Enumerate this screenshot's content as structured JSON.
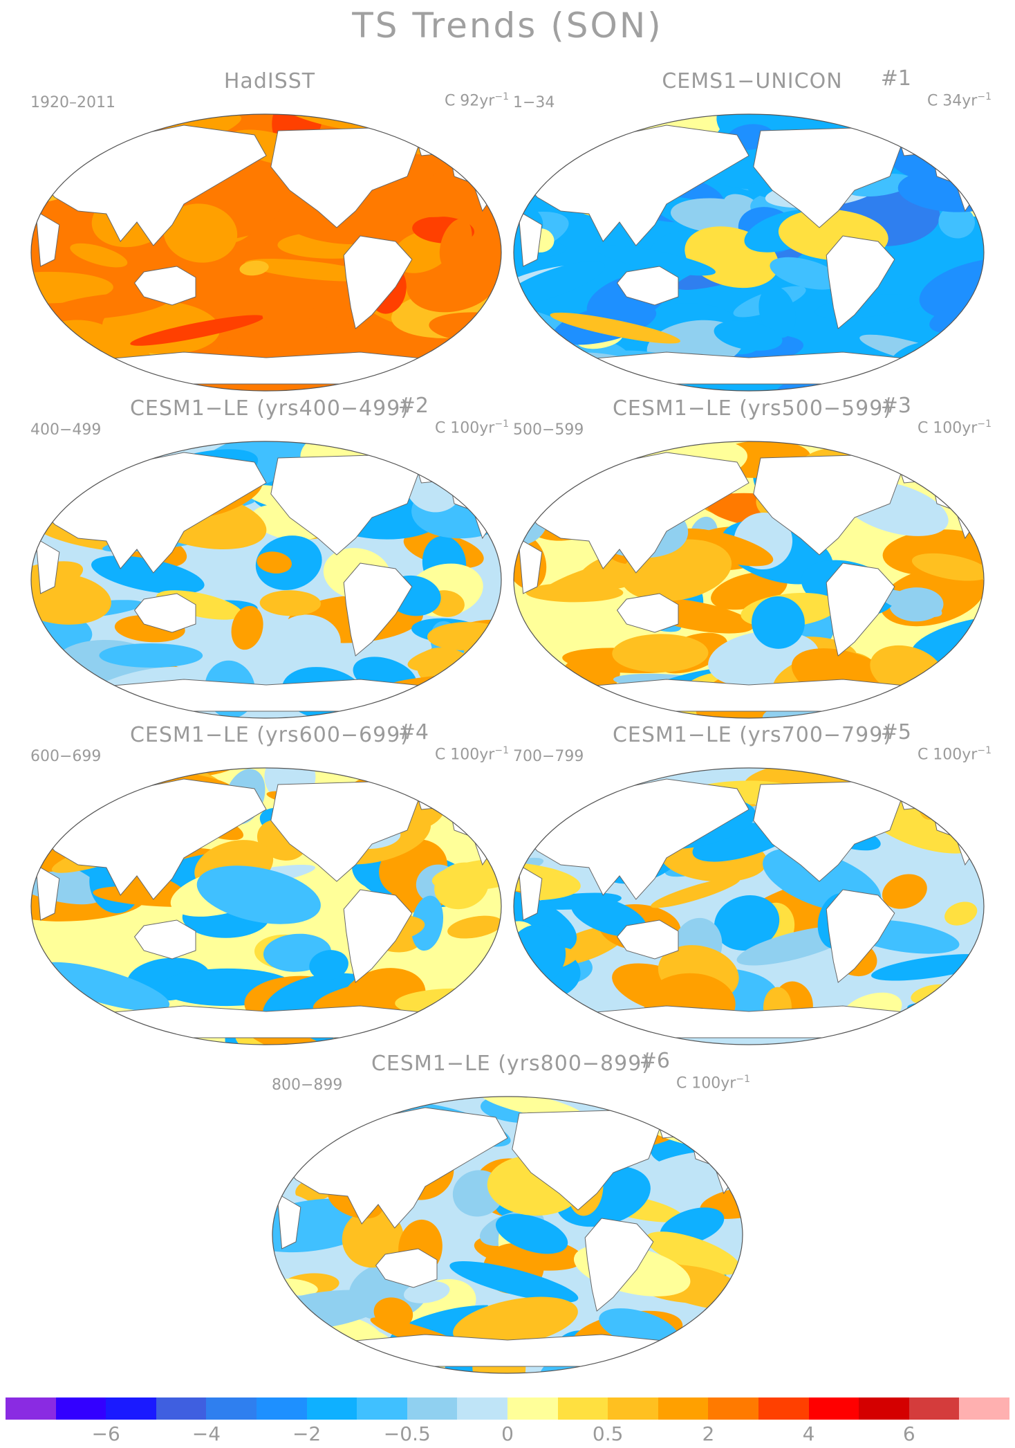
{
  "title": "TS Trends (SON)",
  "panels": [
    {
      "title": "HadISST",
      "number": "",
      "years": "1920–2011",
      "units": "C 92yr",
      "units_exp": "−1",
      "bias": 2.2,
      "spread": 0.6,
      "seed": 11
    },
    {
      "title": "CEMS1−UNICON",
      "number": "#1",
      "years": "1−34",
      "units": "C 34yr",
      "units_exp": "−1",
      "bias": -1.3,
      "spread": 0.9,
      "seed": 23
    },
    {
      "title": "CESM1−LE (yrs400−499)",
      "number": "#2",
      "years": "400−499",
      "units": "C 100yr",
      "units_exp": "−1",
      "bias": 0.0,
      "spread": 0.8,
      "seed": 37
    },
    {
      "title": "CESM1−LE (yrs500−599)",
      "number": "#3",
      "years": "500−599",
      "units": "C 100yr",
      "units_exp": "−1",
      "bias": 0.1,
      "spread": 0.9,
      "seed": 41
    },
    {
      "title": "CESM1−LE (yrs600−699)",
      "number": "#4",
      "years": "600−699",
      "units": "C 100yr",
      "units_exp": "−1",
      "bias": 0.15,
      "spread": 0.8,
      "seed": 53
    },
    {
      "title": "CESM1−LE (yrs700−799)",
      "number": "#5",
      "years": "700−799",
      "units": "C 100yr",
      "units_exp": "−1",
      "bias": -0.05,
      "spread": 0.85,
      "seed": 67
    },
    {
      "title": "CESM1−LE (yrs800−899)",
      "number": "#6",
      "years": "800−899",
      "units": "C 100yr",
      "units_exp": "−1",
      "bias": -0.05,
      "spread": 0.8,
      "seed": 79
    }
  ],
  "colorbar": {
    "colors": [
      "#8a2be2",
      "#3300ff",
      "#1a1aff",
      "#3f5fe0",
      "#2f7fef",
      "#1e90ff",
      "#0fb0ff",
      "#40c0ff",
      "#90d0f0",
      "#bfe4f7",
      "#ffff99",
      "#ffe040",
      "#ffc020",
      "#ffa000",
      "#ff7a00",
      "#ff4000",
      "#ff0000",
      "#d40000",
      "#d43c3c",
      "#ffb0b0"
    ],
    "labels": [
      "−6",
      "−4",
      "−2",
      "−0.5",
      "0",
      "0.5",
      "2",
      "4",
      "6"
    ],
    "levels": [
      -7,
      -6,
      -5,
      -4,
      -3,
      -2,
      -1,
      -0.5,
      -0.25,
      0,
      0.25,
      0.5,
      1,
      2,
      3,
      4,
      5,
      6,
      7
    ]
  }
}
